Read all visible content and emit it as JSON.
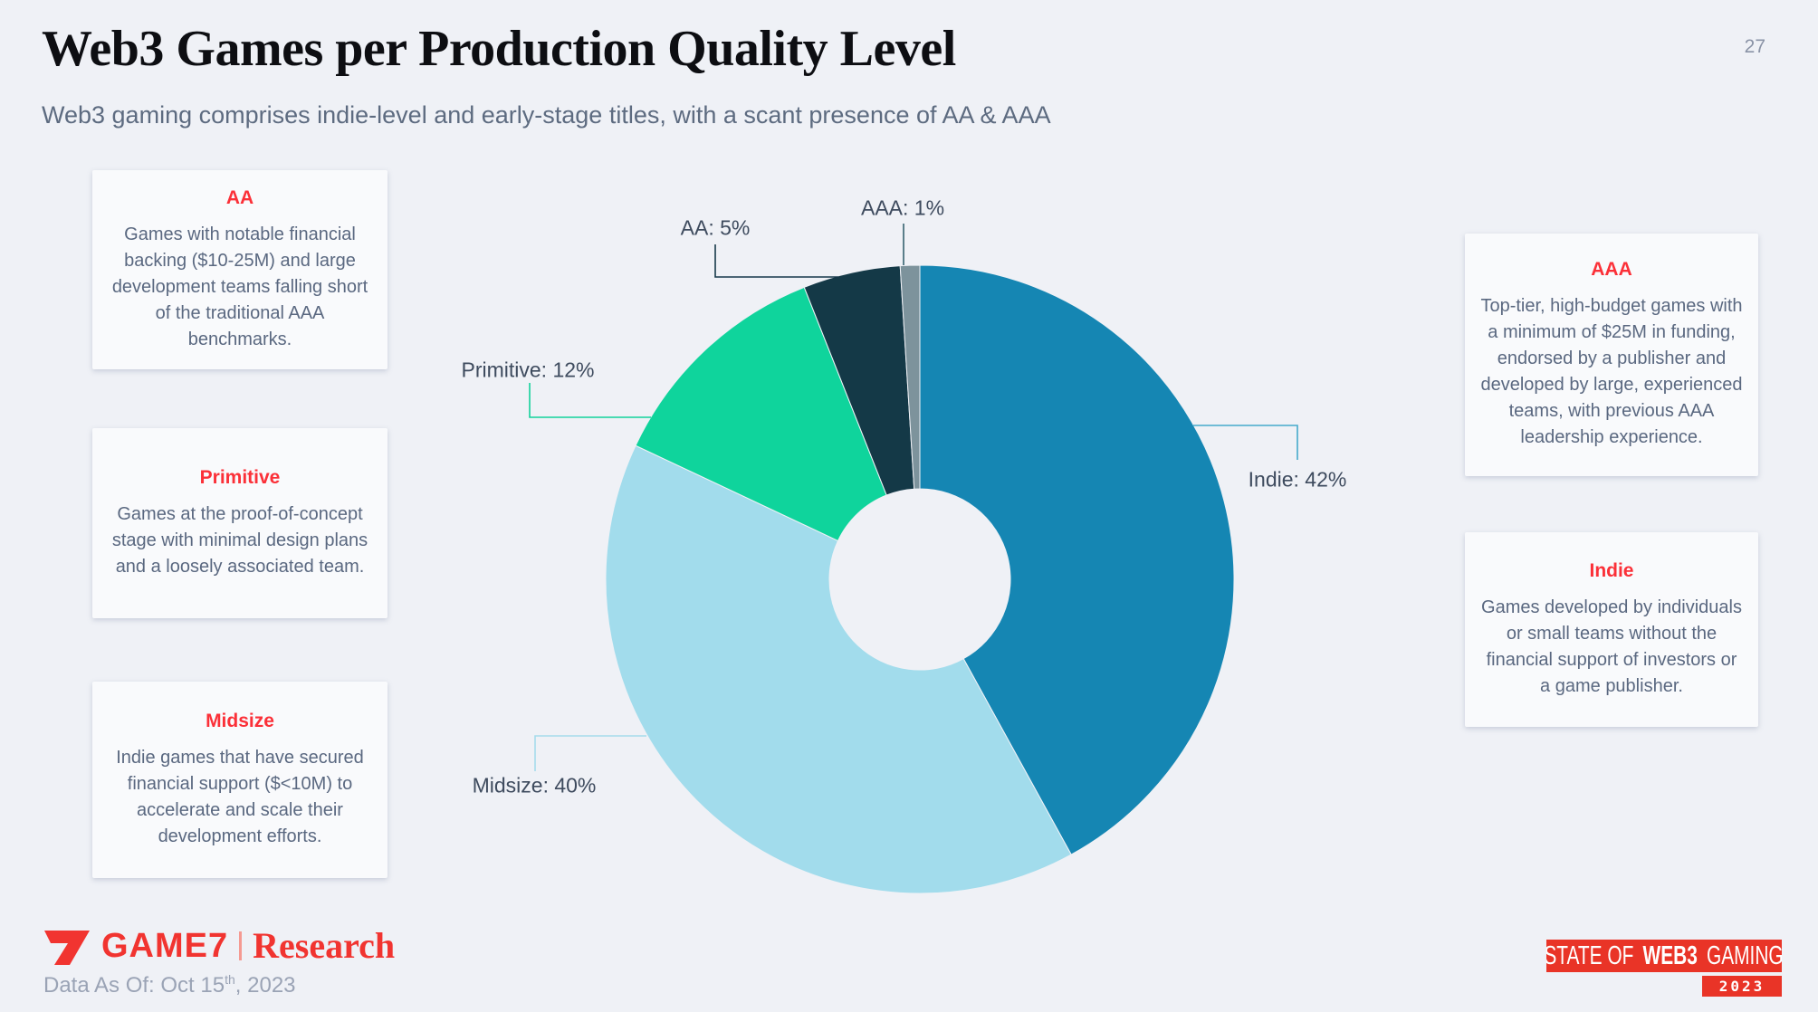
{
  "page": {
    "number": "27"
  },
  "header": {
    "title": "Web3 Games per Production Quality Level",
    "subtitle": "Web3 gaming comprises indie-level and early-stage titles, with a scant presence of AA & AAA"
  },
  "definitions": {
    "left": [
      {
        "title": "AA",
        "body": "Games with notable financial backing ($10-25M) and large development teams falling short of the traditional AAA benchmarks."
      },
      {
        "title": "Primitive",
        "body": "Games at the proof-of-concept stage with minimal design plans and a loosely associated team."
      },
      {
        "title": "Midsize",
        "body": "Indie games that have secured financial support ($<10M) to accelerate and scale their development efforts."
      }
    ],
    "right": [
      {
        "title": "AAA",
        "body": "Top-tier, high-budget games with a minimum of $25M in funding, endorsed by a publisher and developed by large, experienced teams, with previous AAA leadership experience."
      },
      {
        "title": "Indie",
        "body": "Games developed by individuals or small teams without the financial support of investors or a game publisher."
      }
    ]
  },
  "chart_data": {
    "type": "pie",
    "title": "Web3 Games per Production Quality Level",
    "unit": "%",
    "donut_hole_ratio": 0.29,
    "start_angle_deg": 0,
    "direction": "clockwise",
    "legend_position": "callouts",
    "slices": [
      {
        "label": "Indie",
        "value": 42,
        "color": "#1586b3",
        "leader_color": "#45aacb",
        "callout": "Indie: 42%"
      },
      {
        "label": "Midsize",
        "value": 40,
        "color": "#a2dcec",
        "leader_color": "#a5dcec",
        "callout": "Midsize: 40%"
      },
      {
        "label": "Primitive",
        "value": 12,
        "color": "#0fd49c",
        "leader_color": "#12d29b",
        "callout": "Primitive: 12%"
      },
      {
        "label": "AA",
        "value": 5,
        "color": "#143947",
        "leader_color": "#16394a",
        "callout": "AA: 5%"
      },
      {
        "label": "AAA",
        "value": 1,
        "color": "#7d939c",
        "leader_color": "#35616f",
        "callout": "AAA: 1%"
      }
    ]
  },
  "footer": {
    "logo": {
      "brand": "GAME7",
      "suffix": "Research"
    },
    "data_as_of_prefix": "Data As Of: Oct 15",
    "data_as_of_sup": "th",
    "data_as_of_suffix": ", 2023",
    "badge": {
      "part1": "STATE OF",
      "part2": "WEB3",
      "part3": "GAMING",
      "year": "2023"
    }
  },
  "colors": {
    "accent_red": "#fb3038",
    "logo_red": "#f13430",
    "badge_red": "#e93427",
    "background": "#eff1f6",
    "card_background": "#f9fafc",
    "title_text": "#0d0e12",
    "subtitle_text": "#5d6b80",
    "body_text": "#5a6880",
    "callout_text": "#3e4b5e",
    "page_number_text": "#8a93a6"
  }
}
